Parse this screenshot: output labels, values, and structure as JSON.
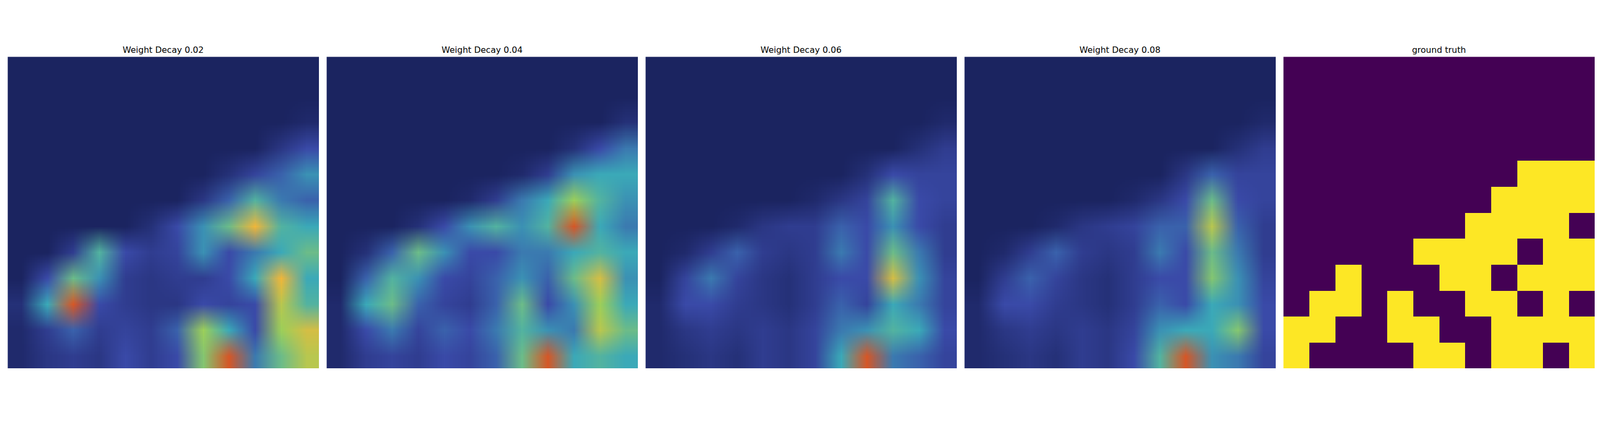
{
  "chart_data": [
    {
      "type": "heatmap",
      "title": "Weight Decay 0.02",
      "zlim": [
        0,
        1
      ],
      "tick_labels": false,
      "values": [
        [
          0,
          0,
          0,
          0,
          0,
          0,
          0,
          0,
          0,
          0,
          0,
          0
        ],
        [
          0,
          0,
          0,
          0,
          0,
          0,
          0,
          0,
          0,
          0,
          0,
          0
        ],
        [
          0,
          0,
          0,
          0,
          0,
          0,
          0,
          0,
          0,
          0,
          0,
          0.05
        ],
        [
          0,
          0,
          0,
          0,
          0,
          0,
          0,
          0,
          0,
          0,
          0.15,
          0.3
        ],
        [
          0,
          0,
          0,
          0,
          0,
          0,
          0,
          0,
          0.1,
          0.25,
          0.35,
          0.45
        ],
        [
          0,
          0,
          0,
          0,
          0,
          0,
          0,
          0.15,
          0.35,
          0.55,
          0.4,
          0.35
        ],
        [
          0,
          0,
          0,
          0,
          0,
          0.1,
          0.3,
          0.45,
          0.6,
          0.85,
          0.55,
          0.5
        ],
        [
          0,
          0,
          0.2,
          0.55,
          0.3,
          0.2,
          0.25,
          0.45,
          0.3,
          0.4,
          0.5,
          0.6
        ],
        [
          0,
          0.3,
          0.6,
          0.45,
          0.2,
          0.15,
          0.2,
          0.2,
          0.3,
          0.5,
          0.85,
          0.5
        ],
        [
          0.1,
          0.5,
          0.95,
          0.3,
          0.2,
          0.15,
          0.15,
          0.3,
          0.25,
          0.3,
          0.75,
          0.55
        ],
        [
          0.05,
          0.2,
          0.35,
          0.2,
          0.25,
          0.2,
          0.35,
          0.7,
          0.5,
          0.3,
          0.7,
          0.8
        ],
        [
          0.05,
          0.15,
          0.2,
          0.15,
          0.3,
          0.2,
          0.3,
          0.65,
          0.95,
          0.4,
          0.6,
          0.75
        ]
      ]
    },
    {
      "type": "heatmap",
      "title": "Weight Decay 0.04",
      "zlim": [
        0,
        1
      ],
      "tick_labels": false,
      "values": [
        [
          0,
          0,
          0,
          0,
          0,
          0,
          0,
          0,
          0,
          0,
          0,
          0
        ],
        [
          0,
          0,
          0,
          0,
          0,
          0,
          0,
          0,
          0,
          0,
          0,
          0
        ],
        [
          0,
          0,
          0,
          0,
          0,
          0,
          0,
          0,
          0,
          0,
          0,
          0.1
        ],
        [
          0,
          0,
          0,
          0,
          0,
          0,
          0,
          0,
          0,
          0.1,
          0.3,
          0.4
        ],
        [
          0,
          0,
          0,
          0,
          0,
          0,
          0,
          0.05,
          0.2,
          0.45,
          0.5,
          0.5
        ],
        [
          0,
          0,
          0,
          0,
          0,
          0.05,
          0.2,
          0.4,
          0.5,
          0.7,
          0.55,
          0.45
        ],
        [
          0,
          0,
          0,
          0.1,
          0.3,
          0.45,
          0.55,
          0.45,
          0.55,
          0.95,
          0.5,
          0.4
        ],
        [
          0,
          0.1,
          0.35,
          0.6,
          0.45,
          0.3,
          0.3,
          0.4,
          0.4,
          0.5,
          0.55,
          0.5
        ],
        [
          0,
          0.35,
          0.55,
          0.45,
          0.3,
          0.25,
          0.35,
          0.45,
          0.35,
          0.6,
          0.8,
          0.45
        ],
        [
          0.05,
          0.5,
          0.6,
          0.35,
          0.25,
          0.2,
          0.35,
          0.6,
          0.3,
          0.45,
          0.7,
          0.5
        ],
        [
          0.05,
          0.3,
          0.4,
          0.25,
          0.35,
          0.3,
          0.4,
          0.55,
          0.45,
          0.4,
          0.75,
          0.6
        ],
        [
          0.05,
          0.2,
          0.25,
          0.2,
          0.3,
          0.25,
          0.35,
          0.6,
          0.95,
          0.5,
          0.55,
          0.5
        ]
      ]
    },
    {
      "type": "heatmap",
      "title": "Weight Decay 0.06",
      "zlim": [
        0,
        1
      ],
      "tick_labels": false,
      "values": [
        [
          0,
          0,
          0,
          0,
          0,
          0,
          0,
          0,
          0,
          0,
          0,
          0
        ],
        [
          0,
          0,
          0,
          0,
          0,
          0,
          0,
          0,
          0,
          0,
          0,
          0
        ],
        [
          0,
          0,
          0,
          0,
          0,
          0,
          0,
          0,
          0,
          0,
          0,
          0.05
        ],
        [
          0,
          0,
          0,
          0,
          0,
          0,
          0,
          0,
          0,
          0,
          0.1,
          0.2
        ],
        [
          0,
          0,
          0,
          0,
          0,
          0,
          0,
          0,
          0.1,
          0.3,
          0.25,
          0.25
        ],
        [
          0,
          0,
          0,
          0,
          0,
          0,
          0.05,
          0.15,
          0.25,
          0.55,
          0.3,
          0.25
        ],
        [
          0,
          0,
          0,
          0.05,
          0.15,
          0.2,
          0.2,
          0.35,
          0.3,
          0.45,
          0.3,
          0.2
        ],
        [
          0,
          0.05,
          0.2,
          0.35,
          0.2,
          0.15,
          0.2,
          0.4,
          0.3,
          0.6,
          0.4,
          0.2
        ],
        [
          0,
          0.25,
          0.4,
          0.25,
          0.15,
          0.1,
          0.2,
          0.3,
          0.3,
          0.8,
          0.45,
          0.25
        ],
        [
          0.05,
          0.3,
          0.3,
          0.2,
          0.15,
          0.1,
          0.2,
          0.35,
          0.25,
          0.5,
          0.4,
          0.25
        ],
        [
          0.05,
          0.15,
          0.2,
          0.15,
          0.2,
          0.15,
          0.25,
          0.4,
          0.45,
          0.55,
          0.5,
          0.3
        ],
        [
          0.05,
          0.1,
          0.15,
          0.1,
          0.2,
          0.15,
          0.25,
          0.5,
          0.95,
          0.4,
          0.35,
          0.25
        ]
      ]
    },
    {
      "type": "heatmap",
      "title": "Weight Decay 0.08",
      "zlim": [
        0,
        1
      ],
      "tick_labels": false,
      "values": [
        [
          0,
          0,
          0,
          0,
          0,
          0,
          0,
          0,
          0,
          0,
          0,
          0
        ],
        [
          0,
          0,
          0,
          0,
          0,
          0,
          0,
          0,
          0,
          0,
          0,
          0
        ],
        [
          0,
          0,
          0,
          0,
          0,
          0,
          0,
          0,
          0,
          0,
          0,
          0.05
        ],
        [
          0,
          0,
          0,
          0,
          0,
          0,
          0,
          0,
          0,
          0,
          0.1,
          0.2
        ],
        [
          0,
          0,
          0,
          0,
          0,
          0,
          0,
          0,
          0.15,
          0.35,
          0.25,
          0.25
        ],
        [
          0,
          0,
          0,
          0,
          0,
          0,
          0.05,
          0.15,
          0.3,
          0.6,
          0.3,
          0.25
        ],
        [
          0,
          0,
          0,
          0.05,
          0.15,
          0.2,
          0.25,
          0.35,
          0.35,
          0.75,
          0.35,
          0.2
        ],
        [
          0,
          0.05,
          0.2,
          0.35,
          0.2,
          0.15,
          0.2,
          0.4,
          0.3,
          0.6,
          0.4,
          0.2
        ],
        [
          0,
          0.2,
          0.35,
          0.25,
          0.15,
          0.1,
          0.2,
          0.3,
          0.3,
          0.65,
          0.45,
          0.25
        ],
        [
          0.05,
          0.3,
          0.3,
          0.2,
          0.15,
          0.1,
          0.2,
          0.35,
          0.3,
          0.5,
          0.45,
          0.3
        ],
        [
          0.05,
          0.15,
          0.2,
          0.15,
          0.2,
          0.15,
          0.25,
          0.45,
          0.5,
          0.5,
          0.65,
          0.3
        ],
        [
          0.05,
          0.1,
          0.15,
          0.1,
          0.2,
          0.15,
          0.3,
          0.55,
          0.95,
          0.45,
          0.4,
          0.25
        ]
      ]
    },
    {
      "type": "mask",
      "title": "ground truth",
      "zlim": [
        0,
        1
      ],
      "tick_labels": false,
      "colors": [
        "#440154",
        "#fde725"
      ],
      "values": [
        [
          0,
          0,
          0,
          0,
          0,
          0,
          0,
          0,
          0,
          0,
          0,
          0
        ],
        [
          0,
          0,
          0,
          0,
          0,
          0,
          0,
          0,
          0,
          0,
          0,
          0
        ],
        [
          0,
          0,
          0,
          0,
          0,
          0,
          0,
          0,
          0,
          0,
          0,
          0
        ],
        [
          0,
          0,
          0,
          0,
          0,
          0,
          0,
          0,
          0,
          0,
          0,
          0
        ],
        [
          0,
          0,
          0,
          0,
          0,
          0,
          0,
          0,
          0,
          1,
          1,
          1
        ],
        [
          0,
          0,
          0,
          0,
          0,
          0,
          0,
          0,
          1,
          1,
          1,
          1
        ],
        [
          0,
          0,
          0,
          0,
          0,
          0,
          0,
          1,
          1,
          1,
          1,
          0
        ],
        [
          0,
          0,
          0,
          0,
          0,
          1,
          1,
          1,
          1,
          0,
          1,
          1
        ],
        [
          0,
          0,
          1,
          0,
          0,
          0,
          1,
          1,
          0,
          1,
          1,
          1
        ],
        [
          0,
          1,
          1,
          0,
          1,
          0,
          0,
          1,
          1,
          0,
          1,
          0
        ],
        [
          1,
          1,
          0,
          0,
          1,
          1,
          0,
          0,
          1,
          1,
          1,
          1
        ],
        [
          1,
          0,
          0,
          0,
          0,
          1,
          1,
          0,
          1,
          1,
          0,
          1
        ]
      ]
    }
  ]
}
